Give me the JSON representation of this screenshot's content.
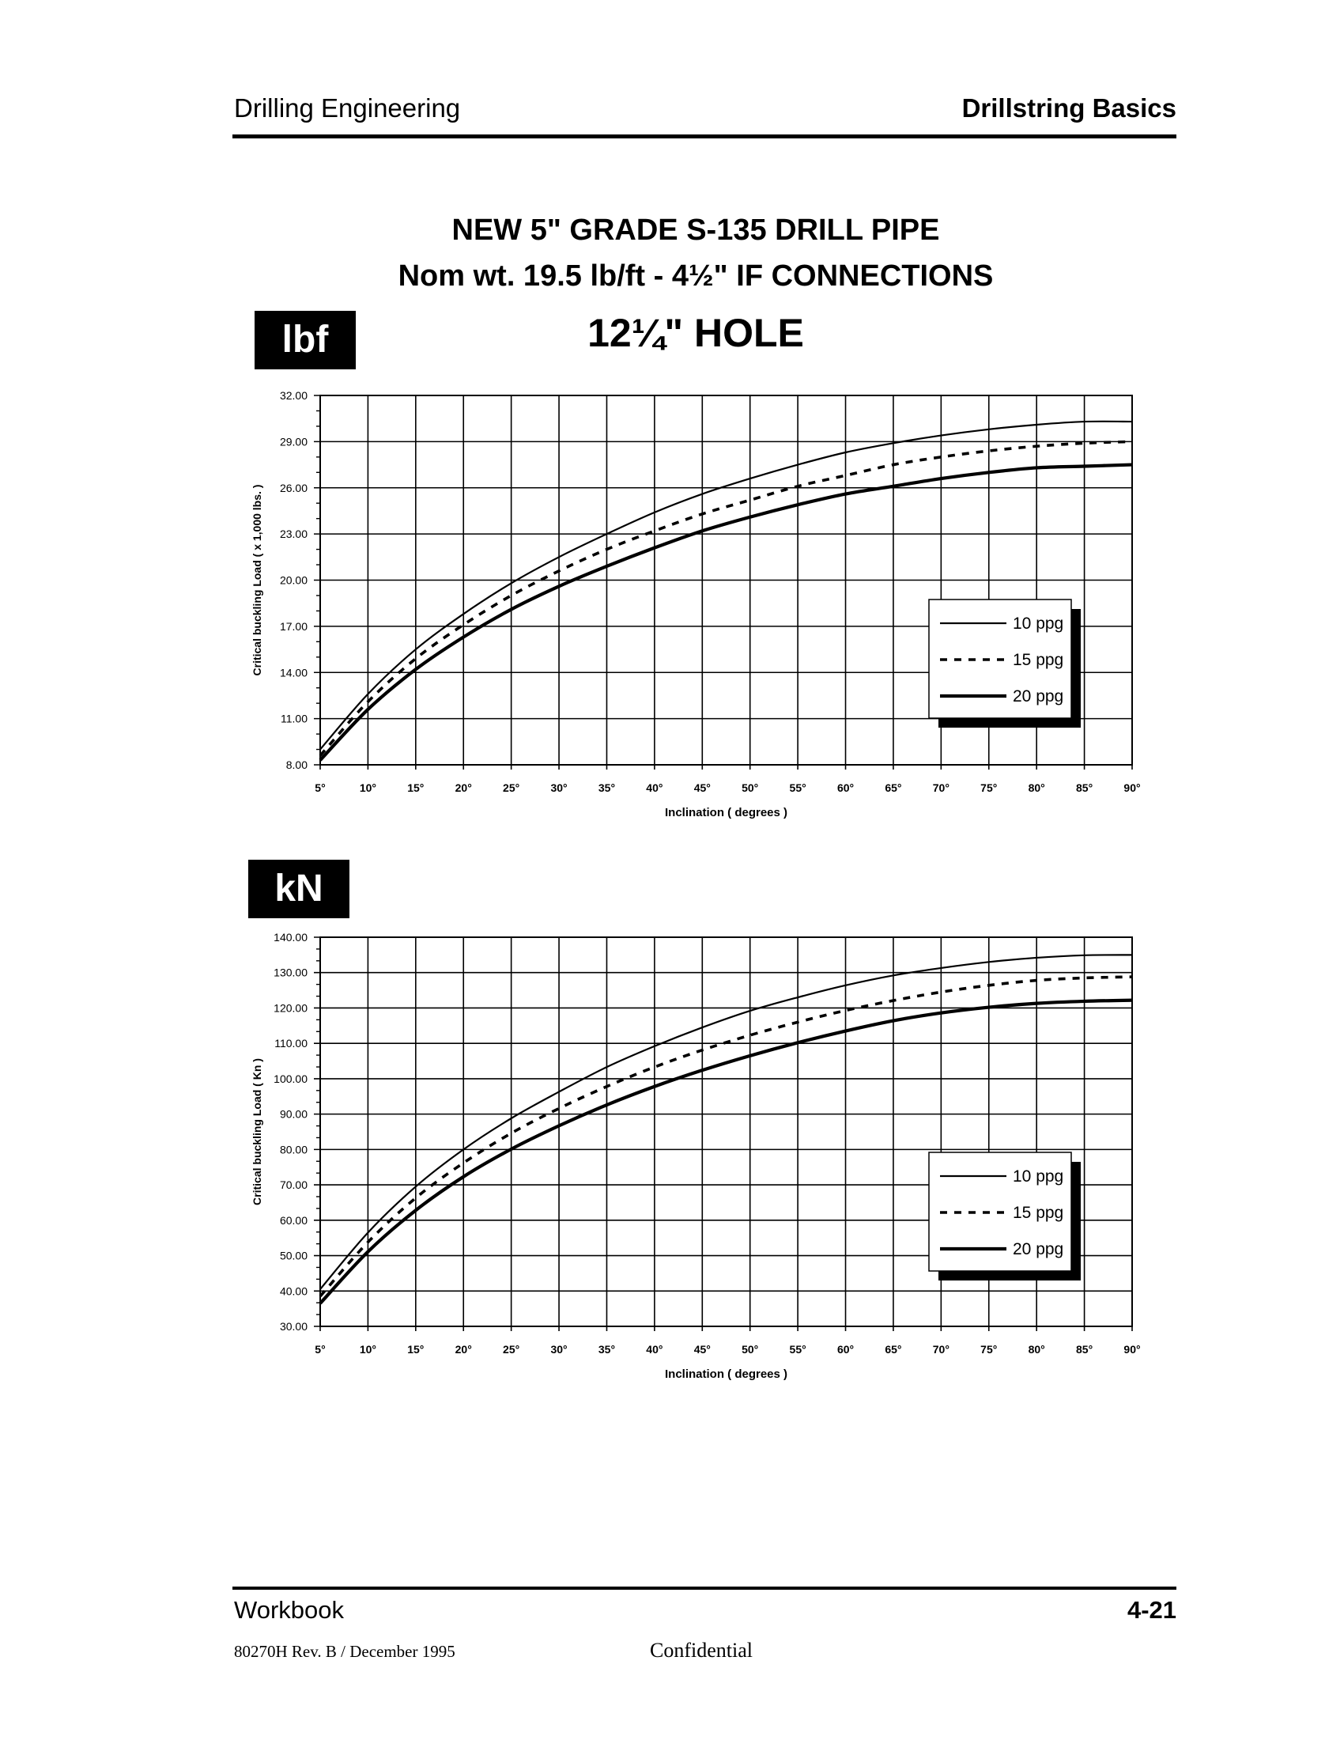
{
  "header": {
    "left": "Drilling Engineering",
    "right": "Drillstring Basics"
  },
  "titles": {
    "line1": "NEW 5\" GRADE  S-135  DRILL PIPE",
    "line2": "Nom wt. 19.5 lb/ft  -   4½\" IF CONNECTIONS",
    "line3": "12¼\" HOLE"
  },
  "footer": {
    "left": "Workbook",
    "right": "4-21",
    "revision": "80270H Rev. B / December 1995",
    "confidential": "Confidential"
  },
  "chart_data": [
    {
      "type": "line",
      "unit_label": "lbf",
      "xlabel": "Inclination  ( degrees )",
      "ylabel": "Critical buckling Load  ( x 1,000 lbs. )",
      "x": [
        5,
        10,
        15,
        20,
        25,
        30,
        35,
        40,
        45,
        50,
        55,
        60,
        65,
        70,
        75,
        80,
        85,
        90
      ],
      "x_tick_labels": [
        "5°",
        "10°",
        "15°",
        "20°",
        "25°",
        "30°",
        "35°",
        "40°",
        "45°",
        "50°",
        "55°",
        "60°",
        "65°",
        "70°",
        "75°",
        "80°",
        "85°",
        "90°"
      ],
      "y_ticks": [
        8,
        11,
        14,
        17,
        20,
        23,
        26,
        29,
        32
      ],
      "y_tick_labels": [
        "8.00",
        "11.00",
        "14.00",
        "17.00",
        "20.00",
        "23.00",
        "26.00",
        "29.00",
        "32.00"
      ],
      "xlim": [
        5,
        90
      ],
      "ylim": [
        8,
        32
      ],
      "grid": true,
      "legend_position": "lower-right",
      "series": [
        {
          "name": "10 ppg",
          "style": "thin",
          "values": [
            9.0,
            12.6,
            15.5,
            17.8,
            19.8,
            21.5,
            23.0,
            24.4,
            25.6,
            26.6,
            27.5,
            28.3,
            28.9,
            29.4,
            29.8,
            30.1,
            30.3,
            30.3
          ]
        },
        {
          "name": "15 ppg",
          "style": "dashed",
          "values": [
            8.6,
            12.1,
            14.9,
            17.1,
            19.0,
            20.6,
            22.0,
            23.2,
            24.3,
            25.2,
            26.1,
            26.8,
            27.5,
            28.0,
            28.4,
            28.7,
            28.9,
            29.0
          ]
        },
        {
          "name": "20 ppg",
          "style": "thick",
          "values": [
            8.3,
            11.6,
            14.2,
            16.3,
            18.1,
            19.6,
            20.9,
            22.1,
            23.2,
            24.1,
            24.9,
            25.6,
            26.1,
            26.6,
            27.0,
            27.3,
            27.4,
            27.5
          ]
        }
      ]
    },
    {
      "type": "line",
      "unit_label": "kN",
      "xlabel": "Inclination  ( degrees )",
      "ylabel": "Critical buckling Load  ( Kn )",
      "x": [
        5,
        10,
        15,
        20,
        25,
        30,
        35,
        40,
        45,
        50,
        55,
        60,
        65,
        70,
        75,
        80,
        85,
        90
      ],
      "x_tick_labels": [
        "5°",
        "10°",
        "15°",
        "20°",
        "25°",
        "30°",
        "35°",
        "40°",
        "45°",
        "50°",
        "55°",
        "60°",
        "65°",
        "70°",
        "75°",
        "80°",
        "85°",
        "90°"
      ],
      "y_ticks": [
        30,
        40,
        50,
        60,
        70,
        80,
        90,
        100,
        110,
        120,
        130,
        140
      ],
      "y_tick_labels": [
        "30.00",
        "40.00",
        "50.00",
        "60.00",
        "70.00",
        "80.00",
        "90.00",
        "100.00",
        "110.00",
        "120.00",
        "130.00",
        "140.00"
      ],
      "xlim": [
        5,
        90
      ],
      "ylim": [
        30,
        140
      ],
      "grid": true,
      "legend_position": "lower-right",
      "series": [
        {
          "name": "10 ppg",
          "style": "thin",
          "values": [
            40.5,
            56.5,
            69.5,
            80.0,
            88.8,
            96.3,
            103.3,
            109.2,
            114.5,
            119.2,
            123.0,
            126.4,
            129.2,
            131.3,
            133.0,
            134.2,
            134.9,
            135.0
          ]
        },
        {
          "name": "15 ppg",
          "style": "dashed",
          "values": [
            38.5,
            53.8,
            66.3,
            76.2,
            84.6,
            91.6,
            97.8,
            103.3,
            108.1,
            112.3,
            116.0,
            119.3,
            122.1,
            124.5,
            126.4,
            127.8,
            128.5,
            128.8
          ]
        },
        {
          "name": "20 ppg",
          "style": "thick",
          "values": [
            36.5,
            51.1,
            62.8,
            72.3,
            80.1,
            86.7,
            92.6,
            97.8,
            102.4,
            106.5,
            110.2,
            113.5,
            116.4,
            118.6,
            120.2,
            121.3,
            121.9,
            122.2
          ]
        }
      ]
    }
  ]
}
